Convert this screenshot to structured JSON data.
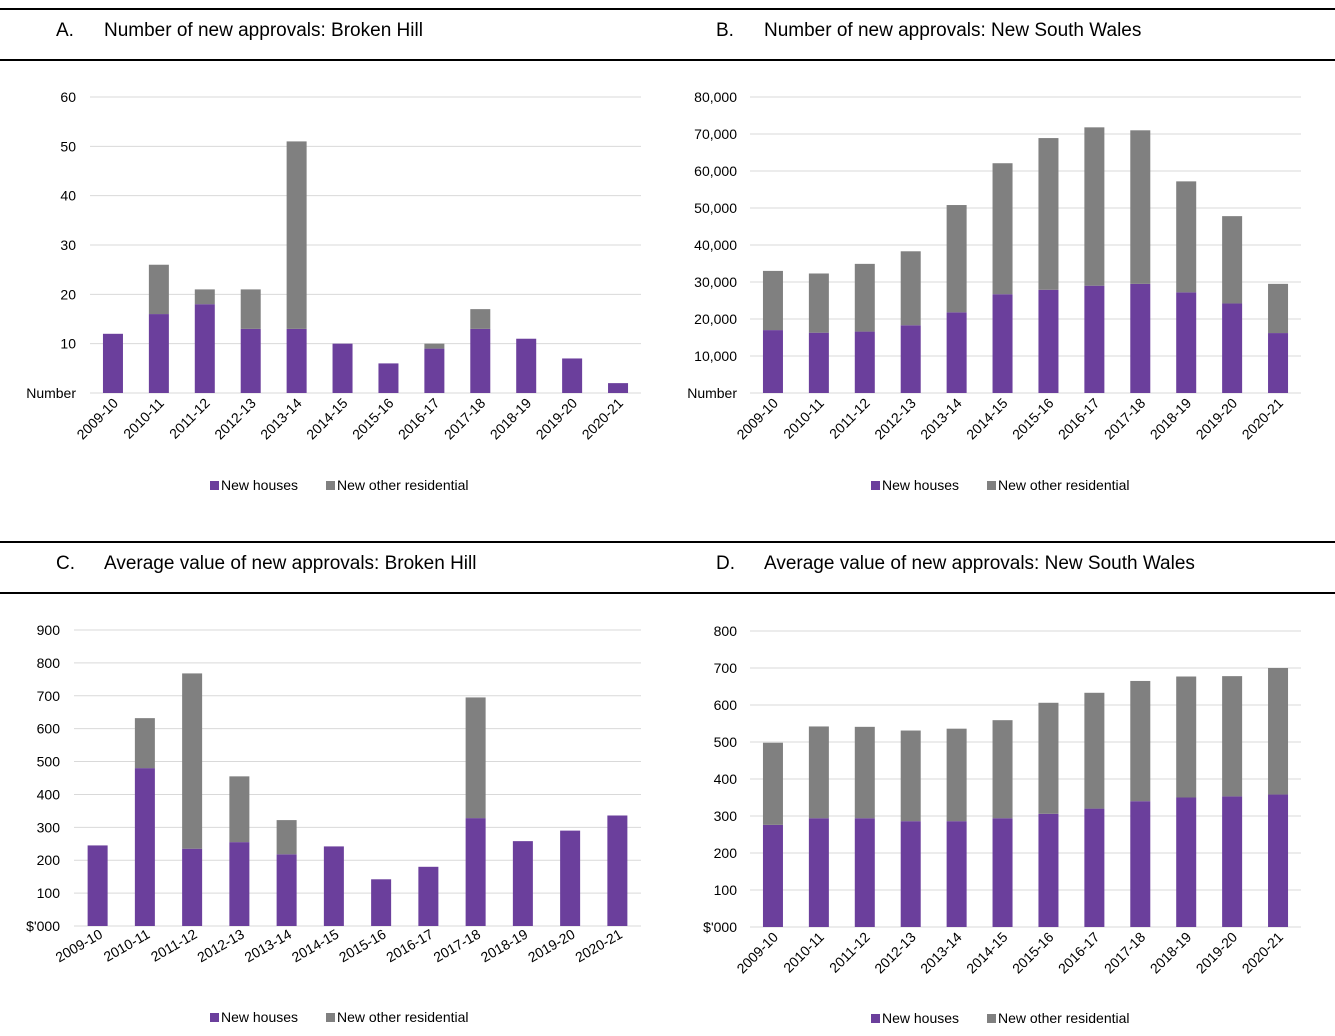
{
  "colors": {
    "houses": "#6b3f9c",
    "other": "#808080",
    "grid": "#d9d9d9"
  },
  "chart_data": [
    {
      "type": "bar",
      "stacked": true,
      "letter": "A.",
      "title": "Number of new approvals: Broken Hill",
      "ylabel": "Number",
      "ylim": [
        0,
        60
      ],
      "yticks": [
        "10",
        "20",
        "30",
        "40",
        "50",
        "60"
      ],
      "ytick_values": [
        10,
        20,
        30,
        40,
        50,
        60
      ],
      "categories": [
        "2009-10",
        "2010-11",
        "2011-12",
        "2012-13",
        "2013-14",
        "2014-15",
        "2015-16",
        "2016-17",
        "2017-18",
        "2018-19",
        "2019-20",
        "2020-21"
      ],
      "rotate_labels": true,
      "series": [
        {
          "name": "New houses",
          "values": [
            12,
            16,
            18,
            13,
            13,
            10,
            6,
            9,
            13,
            11,
            7,
            2
          ]
        },
        {
          "name": "New other residential",
          "values": [
            0,
            10,
            3,
            8,
            38,
            0,
            0,
            1,
            4,
            0,
            0,
            0
          ]
        }
      ],
      "legend": [
        "New houses",
        "New other residential"
      ],
      "legend_position": "bottom"
    },
    {
      "type": "bar",
      "stacked": true,
      "letter": "B.",
      "title": "Number of new approvals: New South Wales",
      "ylabel": "Number",
      "ylim": [
        0,
        80000
      ],
      "yticks": [
        "10,000",
        "20,000",
        "30,000",
        "40,000",
        "50,000",
        "60,000",
        "70,000",
        "80,000"
      ],
      "ytick_values": [
        10000,
        20000,
        30000,
        40000,
        50000,
        60000,
        70000,
        80000
      ],
      "categories": [
        "2009-10",
        "2010-11",
        "2011-12",
        "2012-13",
        "2013-14",
        "2014-15",
        "2015-16",
        "2016-17",
        "2017-18",
        "2018-19",
        "2019-20",
        "2020-21"
      ],
      "rotate_labels": true,
      "series": [
        {
          "name": "New houses",
          "values": [
            17000,
            16300,
            16600,
            18300,
            21800,
            26700,
            27900,
            29000,
            29500,
            27200,
            24200,
            16200
          ]
        },
        {
          "name": "New other residential",
          "values": [
            16000,
            16000,
            18300,
            20000,
            29000,
            35400,
            41000,
            42800,
            41500,
            30000,
            23600,
            13300
          ]
        }
      ],
      "legend": [
        "New houses",
        "New other residential"
      ],
      "legend_position": "bottom"
    },
    {
      "type": "bar",
      "stacked": true,
      "letter": "C.",
      "title": "Average value of new approvals: Broken Hill",
      "ylabel": "$'000",
      "ylim": [
        0,
        900
      ],
      "yticks": [
        "100",
        "200",
        "300",
        "400",
        "500",
        "600",
        "700",
        "800",
        "900"
      ],
      "ytick_values": [
        100,
        200,
        300,
        400,
        500,
        600,
        700,
        800,
        900
      ],
      "categories": [
        "2009-10",
        "2010-11",
        "2011-12",
        "2012-13",
        "2013-14",
        "2014-15",
        "2015-16",
        "2016-17",
        "2017-18",
        "2018-19",
        "2019-20",
        "2020-21"
      ],
      "rotate_labels": false,
      "series": [
        {
          "name": "New houses",
          "values": [
            245,
            480,
            235,
            255,
            218,
            242,
            142,
            180,
            328,
            258,
            290,
            336
          ]
        },
        {
          "name": "New other residential",
          "values": [
            0,
            152,
            533,
            200,
            104,
            0,
            0,
            0,
            367,
            0,
            0,
            0
          ]
        }
      ],
      "legend": [
        "New houses",
        "New other residential"
      ],
      "legend_position": "bottom"
    },
    {
      "type": "bar",
      "stacked": true,
      "letter": "D.",
      "title": "Average value of new approvals: New South Wales",
      "ylabel": "$'000",
      "ylim": [
        0,
        800
      ],
      "yticks": [
        "100",
        "200",
        "300",
        "400",
        "500",
        "600",
        "700",
        "800"
      ],
      "ytick_values": [
        100,
        200,
        300,
        400,
        500,
        600,
        700,
        800
      ],
      "categories": [
        "2009-10",
        "2010-11",
        "2011-12",
        "2012-13",
        "2013-14",
        "2014-15",
        "2015-16",
        "2016-17",
        "2017-18",
        "2018-19",
        "2019-20",
        "2020-21"
      ],
      "rotate_labels": true,
      "series": [
        {
          "name": "New houses",
          "values": [
            276,
            294,
            294,
            286,
            286,
            294,
            306,
            320,
            340,
            350,
            353,
            358
          ]
        },
        {
          "name": "New other residential",
          "values": [
            222,
            248,
            247,
            245,
            250,
            265,
            300,
            313,
            325,
            327,
            325,
            342
          ]
        }
      ],
      "legend": [
        "New houses",
        "New other residential"
      ],
      "legend_position": "bottom"
    }
  ]
}
